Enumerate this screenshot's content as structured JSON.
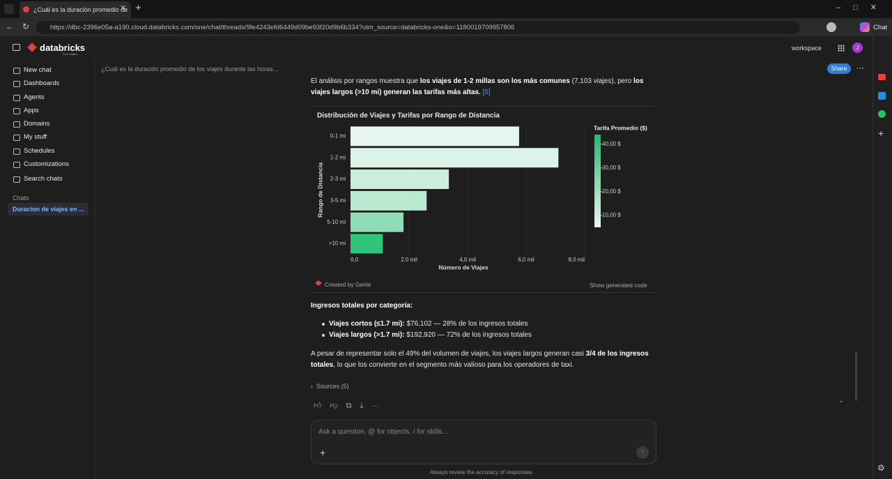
{
  "browser": {
    "tab_title": "¿Cuál es la duración promedio de",
    "url": "https://dbc-2396e05a-a190.cloud.databricks.com/one/chat/threads/9fe4243efd6449d09be93f20d9b6b334?utm_source=databricks-one&o=1180019709957806",
    "copilot": "Chat"
  },
  "app": {
    "brand": "databricks",
    "brand_sub": "Free Edition",
    "workspace": "workspace",
    "avatar": "J"
  },
  "sidebar": {
    "nav": [
      "New chat",
      "Dashboards",
      "Agents",
      "Apps",
      "Domains",
      "My stuff",
      "Schedules",
      "Customizations",
      "Search chats"
    ],
    "section": "Chats",
    "chats": [
      "Duracion de viajes en ..."
    ]
  },
  "thread": {
    "title": "¿Cuál es la duración promedio de los viajes durante las horas...",
    "share": "Share"
  },
  "message": {
    "intro": [
      "El análisis por rangos muestra que ",
      "los viajes de 1-2 millas son los más comunes",
      " (7,103 viajes), pero ",
      "los viajes largos (>10 mi) generan las tarifas más altas.",
      " [5]"
    ],
    "revenue_heading": "Ingresos totales por categoría:",
    "bullets": [
      [
        "Viajes cortos (≤1.7 mi):",
        " $76,102 — 28% de los ingresos totales"
      ],
      [
        "Viajes largos (>1.7 mi):",
        " $192,920 — 72% de los ingresos totales"
      ]
    ],
    "conclusion": [
      "A pesar de representar solo el 49% del volumen de viajes, los viajes largos generan casi ",
      "3/4 de los ingresos totales",
      ", lo que los convierte en el segmento más valioso para los operadores de taxi."
    ],
    "sources": "Sources (5)",
    "created_by": "Created by Genie",
    "show_code": "Show generated code"
  },
  "chart_data": {
    "type": "bar",
    "orientation": "horizontal",
    "title": "Distribución de Viajes y Tarifas por Rango de Distancia",
    "x_label": "Número de Viajes",
    "y_label": "Rango de Distancia",
    "categories": [
      "0-1 mi",
      "1-2 mi",
      "2-3 mi",
      "3-5 mi",
      "5-10 mi",
      ">10 mi"
    ],
    "values": [
      5760,
      7103,
      3360,
      2600,
      1810,
      1100
    ],
    "colors": [
      "#e6f6ef",
      "#dbf3e8",
      "#cbeedd",
      "#b8e9d1",
      "#8fdcb6",
      "#2ec47c"
    ],
    "xlim": [
      0,
      8000
    ],
    "xticks": [
      {
        "value": 0,
        "label": "0,0"
      },
      {
        "value": 2000,
        "label": "2,0 mil"
      },
      {
        "value": 4000,
        "label": "4,0 mil"
      },
      {
        "value": 6000,
        "label": "6,0 mil"
      },
      {
        "value": 8000,
        "label": "8,0 mil"
      }
    ],
    "grid": true,
    "colorbar": {
      "title": "Tarifa Promedio ($)",
      "clim": [
        5,
        44
      ],
      "colors": [
        "#eaf8f1",
        "#1fba70"
      ],
      "ticks": [
        {
          "value": 10,
          "label": "10,00 $"
        },
        {
          "value": 20,
          "label": "20,00 $"
        },
        {
          "value": 30,
          "label": "30,00 $"
        },
        {
          "value": 40,
          "label": "40,00 $"
        }
      ]
    }
  },
  "composer": {
    "placeholder": "Ask a question, @ for objects, / for skills...",
    "disclaimer": "Always review the accuracy of responses."
  }
}
